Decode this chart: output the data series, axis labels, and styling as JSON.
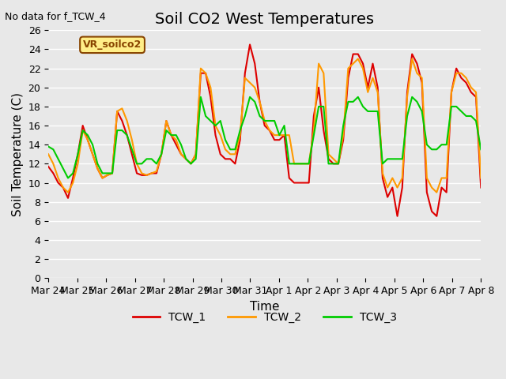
{
  "title": "Soil CO2 West Temperatures",
  "xlabel": "Time",
  "ylabel": "Soil Temperature (C)",
  "top_left_note": "No data for f_TCW_4",
  "legend_box_label": "VR_soilco2",
  "ylim": [
    0,
    26
  ],
  "yticks": [
    0,
    2,
    4,
    6,
    8,
    10,
    12,
    14,
    16,
    18,
    20,
    22,
    24,
    26
  ],
  "x_labels": [
    "Mar 24",
    "Mar 25",
    "Mar 26",
    "Mar 27",
    "Mar 28",
    "Mar 29",
    "Mar 30",
    "Mar 31",
    "Apr 1",
    "Apr 2",
    "Apr 3",
    "Apr 4",
    "Apr 5",
    "Apr 6",
    "Apr 7",
    "Apr 8"
  ],
  "series": {
    "TCW_1": {
      "color": "#dd0000",
      "y": [
        11.7,
        11.0,
        10.0,
        9.5,
        8.4,
        10.5,
        13.0,
        16.0,
        14.5,
        13.0,
        11.5,
        10.5,
        10.8,
        11.0,
        17.5,
        16.5,
        15.0,
        13.0,
        11.0,
        10.8,
        10.8,
        11.0,
        11.0,
        13.0,
        16.5,
        15.0,
        14.0,
        13.0,
        12.5,
        12.0,
        13.0,
        21.5,
        21.5,
        19.0,
        15.0,
        13.0,
        12.5,
        12.5,
        12.0,
        14.5,
        21.5,
        24.5,
        22.5,
        18.5,
        16.0,
        15.5,
        14.5,
        14.5,
        15.0,
        10.5,
        10.0,
        10.0,
        10.0,
        10.0,
        17.0,
        20.0,
        15.5,
        12.5,
        12.0,
        12.0,
        14.5,
        21.0,
        23.5,
        23.5,
        22.5,
        20.0,
        22.5,
        20.0,
        10.5,
        8.5,
        9.5,
        6.5,
        9.5,
        19.5,
        23.5,
        22.5,
        20.5,
        9.0,
        7.0,
        6.5,
        9.5,
        9.0,
        19.5,
        22.0,
        21.0,
        20.5,
        19.5,
        19.0,
        9.5
      ]
    },
    "TCW_2": {
      "color": "#ff9900",
      "y": [
        13.0,
        12.0,
        10.5,
        9.5,
        9.0,
        10.0,
        12.0,
        15.5,
        14.5,
        13.0,
        11.5,
        10.5,
        10.8,
        11.0,
        17.5,
        17.8,
        16.5,
        14.5,
        12.0,
        11.0,
        10.8,
        11.0,
        11.2,
        13.0,
        16.5,
        15.0,
        14.5,
        13.0,
        12.5,
        12.0,
        13.0,
        22.0,
        21.5,
        20.0,
        16.0,
        15.0,
        13.5,
        13.0,
        13.0,
        15.0,
        21.0,
        20.5,
        20.0,
        18.5,
        16.5,
        15.5,
        15.0,
        15.0,
        15.0,
        15.0,
        12.0,
        12.0,
        12.0,
        12.0,
        15.5,
        22.5,
        21.5,
        13.0,
        12.5,
        12.0,
        15.0,
        22.0,
        22.5,
        23.0,
        22.0,
        19.5,
        21.0,
        19.5,
        11.0,
        9.5,
        10.5,
        9.5,
        10.5,
        19.0,
        23.0,
        21.5,
        21.0,
        10.5,
        9.5,
        9.0,
        10.5,
        10.5,
        19.5,
        21.5,
        21.5,
        21.0,
        20.0,
        19.5,
        10.5
      ]
    },
    "TCW_3": {
      "color": "#00cc00",
      "y": [
        13.8,
        13.5,
        12.5,
        11.5,
        10.5,
        11.0,
        13.0,
        15.5,
        15.0,
        14.0,
        12.0,
        11.0,
        11.0,
        11.0,
        15.5,
        15.5,
        15.0,
        13.5,
        12.0,
        12.0,
        12.5,
        12.5,
        12.0,
        13.0,
        15.5,
        15.0,
        15.0,
        14.0,
        12.5,
        12.0,
        12.5,
        19.0,
        17.0,
        16.5,
        16.0,
        16.5,
        14.5,
        13.5,
        13.5,
        15.5,
        17.0,
        19.0,
        18.5,
        17.0,
        16.5,
        16.5,
        16.5,
        15.0,
        16.0,
        12.0,
        12.0,
        12.0,
        12.0,
        12.0,
        15.0,
        18.0,
        18.0,
        12.0,
        12.0,
        12.0,
        16.0,
        18.5,
        18.5,
        19.0,
        18.0,
        17.5,
        17.5,
        17.5,
        12.0,
        12.5,
        12.5,
        12.5,
        12.5,
        17.0,
        19.0,
        18.5,
        17.5,
        14.0,
        13.5,
        13.5,
        14.0,
        14.0,
        18.0,
        18.0,
        17.5,
        17.0,
        17.0,
        16.5,
        13.5
      ]
    }
  },
  "bg_color": "#e8e8e8",
  "plot_bg": "#e8e8e8",
  "grid_color": "white",
  "title_fontsize": 14,
  "axis_label_fontsize": 11,
  "tick_fontsize": 9,
  "line_width": 1.5
}
